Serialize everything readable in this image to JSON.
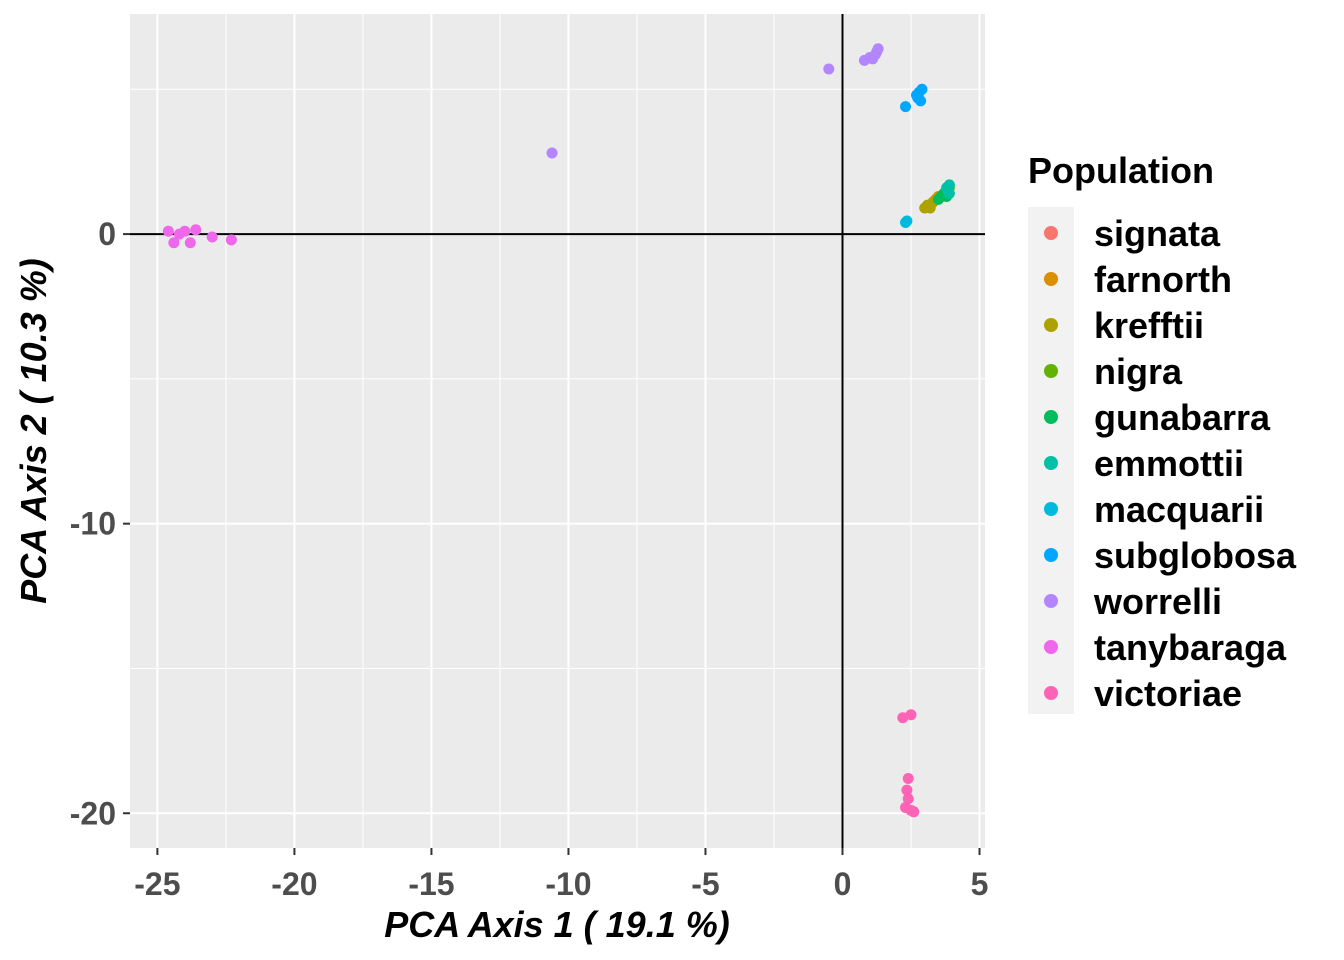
{
  "chart_data": {
    "type": "scatter",
    "xlabel": "PCA Axis 1 ( 19.1 %)",
    "ylabel": "PCA Axis 2 ( 10.3 %)",
    "xlim": [
      -26,
      5.2
    ],
    "ylim": [
      -21.2,
      7.6
    ],
    "x_ticks": [
      -25,
      -20,
      -15,
      -10,
      -5,
      0,
      5
    ],
    "x_tick_labels": [
      "-25",
      "-20",
      "-15",
      "-10",
      "-5",
      "0",
      "5"
    ],
    "y_ticks": [
      0,
      -10,
      -20
    ],
    "y_tick_labels": [
      "0",
      "-10",
      "-20"
    ],
    "grid": true,
    "reference_lines": {
      "x": 0,
      "y": 0
    },
    "legend": {
      "title": "Population",
      "position": "right"
    },
    "series": [
      {
        "name": "signata",
        "color": "#F8766D",
        "points": [
          [
            3.6,
            1.3
          ],
          [
            3.7,
            1.4
          ]
        ]
      },
      {
        "name": "farnorth",
        "color": "#DB8E00",
        "points": [
          [
            3.3,
            1.1
          ],
          [
            3.4,
            1.2
          ],
          [
            3.5,
            1.3
          ],
          [
            3.2,
            1.0
          ]
        ]
      },
      {
        "name": "krefftii",
        "color": "#AEA200",
        "points": [
          [
            3.0,
            0.9
          ],
          [
            3.1,
            1.0
          ],
          [
            3.2,
            0.9
          ],
          [
            3.3,
            1.1
          ],
          [
            3.15,
            0.95
          ]
        ]
      },
      {
        "name": "nigra",
        "color": "#64B200",
        "points": [
          [
            3.8,
            1.5
          ],
          [
            3.9,
            1.6
          ]
        ]
      },
      {
        "name": "gunabarra",
        "color": "#00BD5C",
        "points": [
          [
            3.5,
            1.2
          ],
          [
            3.6,
            1.3
          ],
          [
            3.7,
            1.4
          ],
          [
            3.8,
            1.3
          ]
        ]
      },
      {
        "name": "emmottii",
        "color": "#00C1A7",
        "points": [
          [
            3.8,
            1.6
          ],
          [
            3.9,
            1.7
          ],
          [
            3.85,
            1.5
          ],
          [
            3.9,
            1.4
          ]
        ]
      },
      {
        "name": "macquarii",
        "color": "#00BADE",
        "points": [
          [
            2.3,
            0.4
          ],
          [
            2.35,
            0.45
          ]
        ]
      },
      {
        "name": "subglobosa",
        "color": "#00A6FF",
        "points": [
          [
            2.3,
            4.4
          ],
          [
            2.7,
            4.8
          ],
          [
            2.8,
            4.9
          ],
          [
            2.9,
            5.0
          ],
          [
            2.75,
            4.7
          ],
          [
            2.85,
            4.6
          ]
        ]
      },
      {
        "name": "worrelli",
        "color": "#B385FF",
        "points": [
          [
            -10.6,
            2.8
          ],
          [
            -0.5,
            5.7
          ],
          [
            0.8,
            6.0
          ],
          [
            1.0,
            6.1
          ],
          [
            1.2,
            6.2
          ],
          [
            1.3,
            6.4
          ],
          [
            1.1,
            6.05
          ],
          [
            1.25,
            6.3
          ]
        ]
      },
      {
        "name": "tanybaraga",
        "color": "#EF67EB",
        "points": [
          [
            -24.6,
            0.1
          ],
          [
            -24.4,
            -0.3
          ],
          [
            -24.2,
            0.0
          ],
          [
            -24.0,
            0.1
          ],
          [
            -23.8,
            -0.3
          ],
          [
            -23.6,
            0.15
          ],
          [
            -23.0,
            -0.1
          ],
          [
            -22.3,
            -0.2
          ]
        ]
      },
      {
        "name": "victoriae",
        "color": "#FF63B6",
        "points": [
          [
            2.2,
            -16.7
          ],
          [
            2.5,
            -16.6
          ],
          [
            2.4,
            -18.8
          ],
          [
            2.35,
            -19.2
          ],
          [
            2.4,
            -19.5
          ],
          [
            2.3,
            -19.8
          ],
          [
            2.5,
            -19.9
          ],
          [
            2.6,
            -19.95
          ]
        ]
      }
    ]
  }
}
